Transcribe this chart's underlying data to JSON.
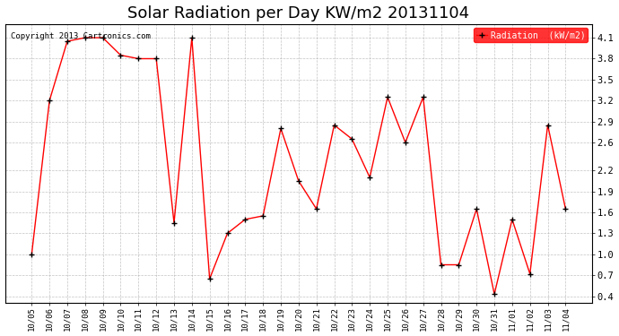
{
  "title": "Solar Radiation per Day KW/m2 20131104",
  "copyright": "Copyright 2013 Cartronics.com",
  "legend_label": "Radiation  (kW/m2)",
  "dates": [
    "10/05",
    "10/06",
    "10/07",
    "10/08",
    "10/09",
    "10/10",
    "10/11",
    "10/12",
    "10/13",
    "10/14",
    "10/15",
    "10/16",
    "10/17",
    "10/18",
    "10/19",
    "10/20",
    "10/21",
    "10/22",
    "10/23",
    "10/24",
    "10/25",
    "10/26",
    "10/27",
    "10/28",
    "10/29",
    "10/30",
    "10/31",
    "11/01",
    "11/02",
    "11/03",
    "11/04"
  ],
  "values": [
    1.0,
    3.2,
    4.05,
    4.1,
    4.1,
    3.85,
    3.8,
    3.8,
    1.45,
    4.1,
    0.65,
    1.3,
    1.5,
    1.55,
    2.8,
    2.05,
    1.65,
    2.85,
    2.65,
    2.1,
    3.25,
    2.6,
    3.25,
    0.85,
    0.85,
    1.65,
    0.43,
    1.5,
    0.72,
    2.85,
    1.65
  ],
  "line_color": "red",
  "marker_color": "black",
  "background_color": "white",
  "grid_color": "#aaaaaa",
  "ylim": [
    0.3,
    4.3
  ],
  "yticks": [
    0.4,
    0.7,
    1.0,
    1.3,
    1.6,
    1.9,
    2.2,
    2.6,
    2.9,
    3.2,
    3.5,
    3.8,
    4.1
  ],
  "title_fontsize": 13,
  "legend_bg_color": "red",
  "legend_text_color": "white",
  "fig_width": 6.9,
  "fig_height": 3.75,
  "dpi": 100
}
